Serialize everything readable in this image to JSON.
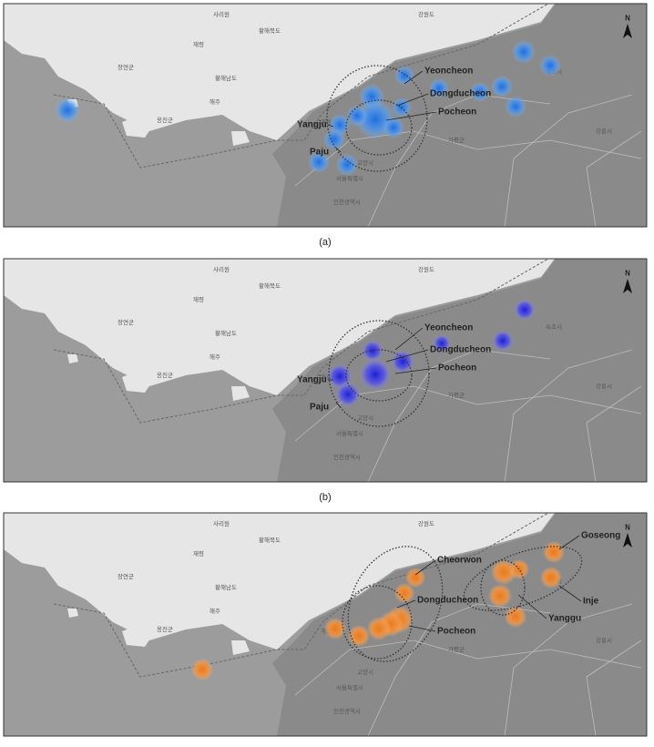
{
  "panels": [
    {
      "caption": "(a)",
      "labels": [
        "Yeoncheon",
        "Dongducheon",
        "Pocheon",
        "Yangju",
        "Paju"
      ]
    },
    {
      "caption": "(b)",
      "labels": [
        "Yeoncheon",
        "Dongducheon",
        "Pocheon",
        "Yangju",
        "Paju"
      ]
    },
    {
      "labels": [
        "Cheorwon",
        "Dongducheon",
        "Pocheon",
        "Goseong",
        "Inje",
        "Yanggu"
      ]
    }
  ],
  "north": "N",
  "map_labels": [
    "강원도",
    "사리원",
    "황해북도",
    "재령",
    "장연군",
    "황해남도",
    "해주",
    "옹진군",
    "개성",
    "서울특별시",
    "인천광역시",
    "고양시",
    "가평군",
    "속초시",
    "강릉시"
  ]
}
